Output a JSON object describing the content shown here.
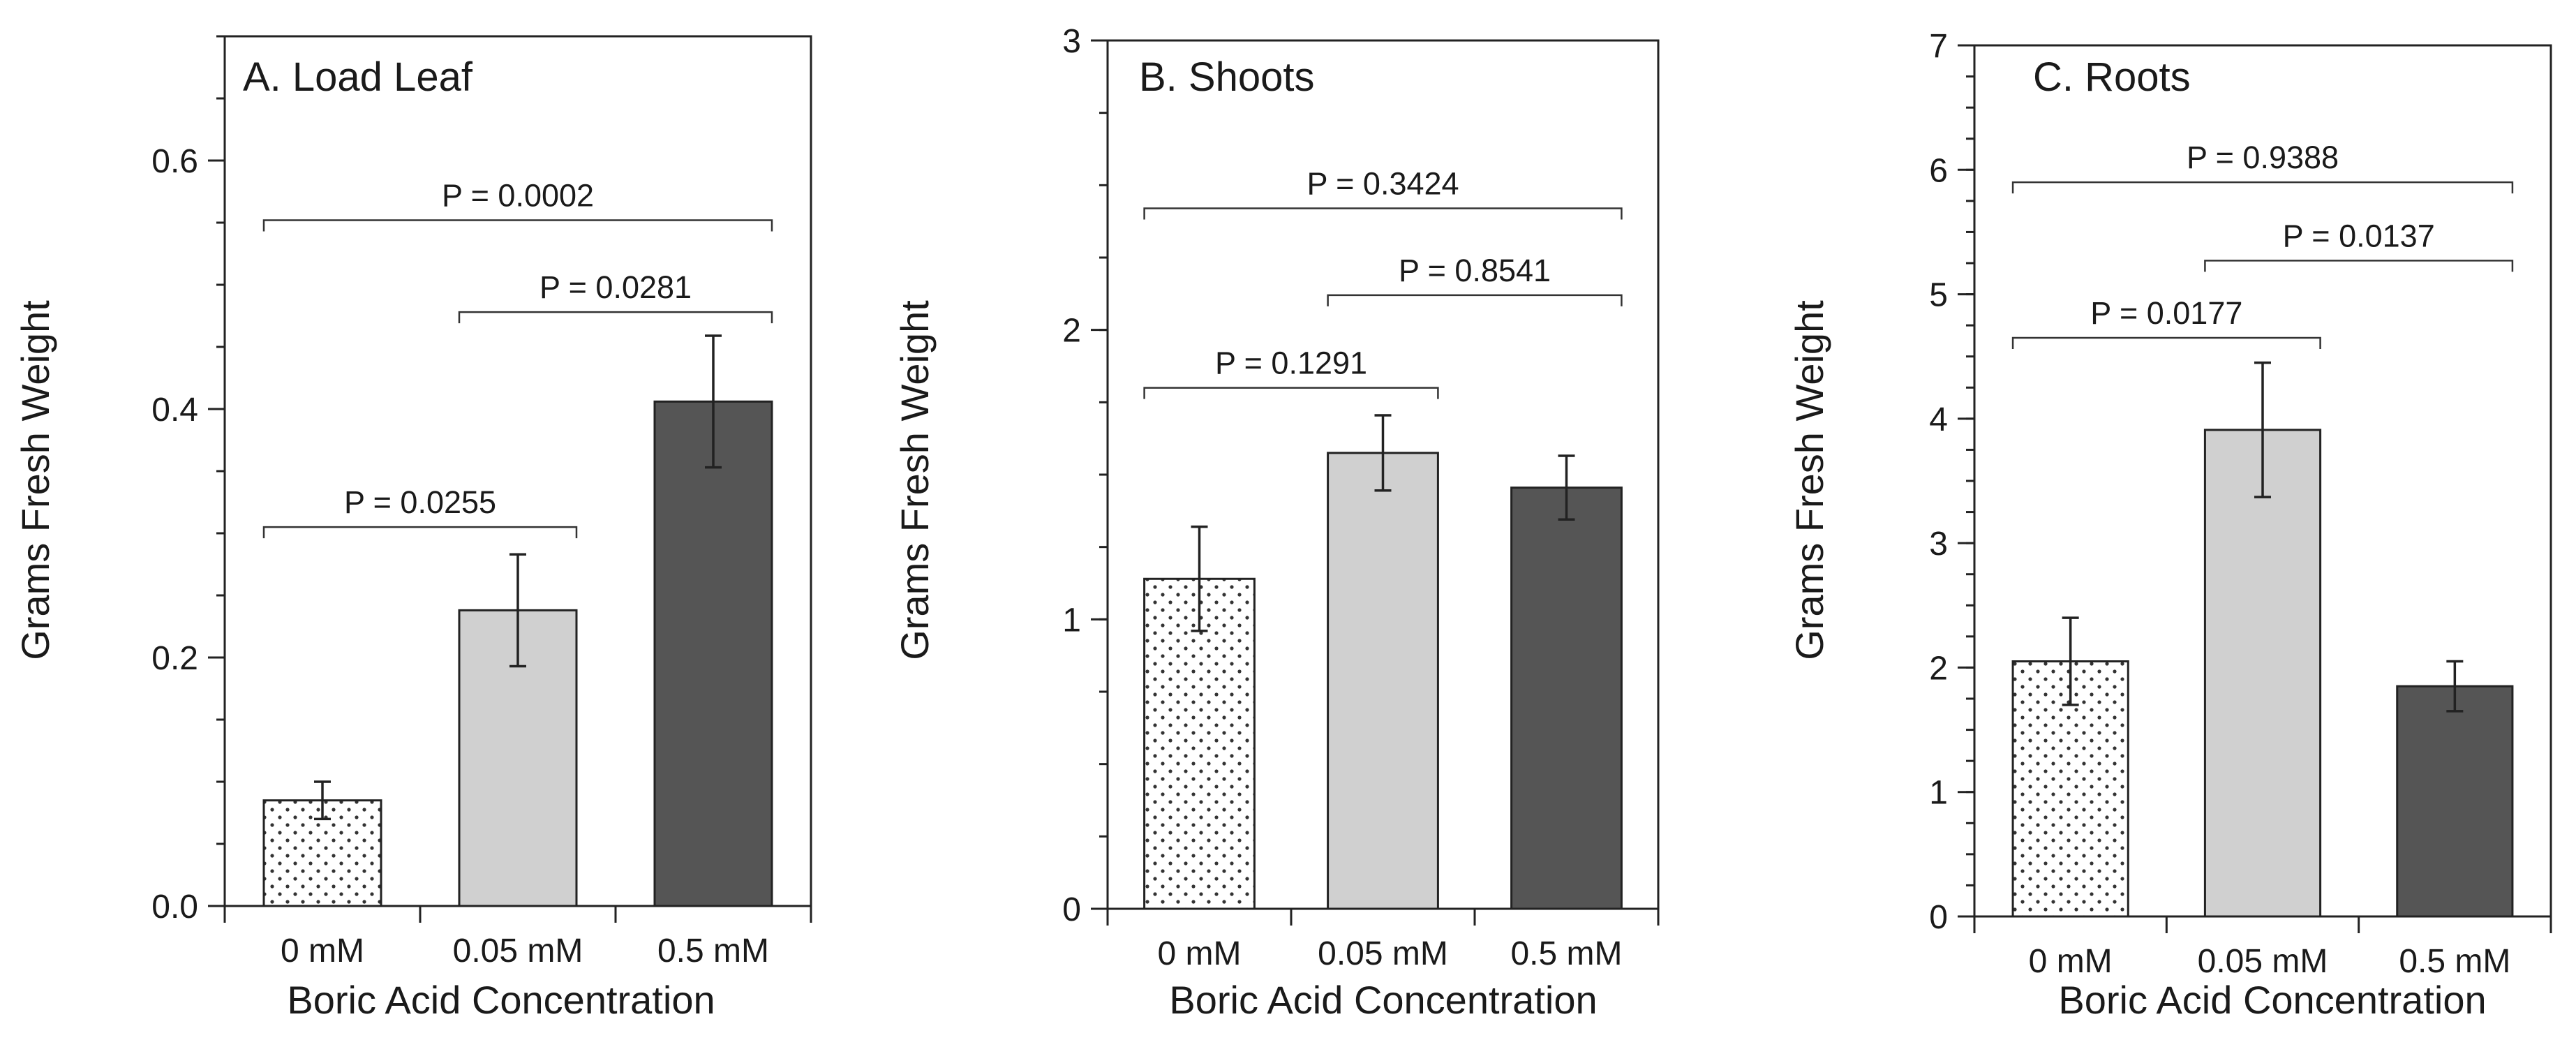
{
  "chart_data": [
    {
      "type": "bar",
      "title": "A.  Load Leaf",
      "xlabel": "Boric Acid Concentration",
      "ylabel": "Grams Fresh Weight",
      "categories": [
        "0 mM",
        "0.05 mM",
        "0.5 mM"
      ],
      "values": [
        0.085,
        0.238,
        0.406
      ],
      "errors": [
        0.015,
        0.045,
        0.053
      ],
      "bar_styles": [
        "dotted",
        "light",
        "dark"
      ],
      "ylim": [
        0,
        0.7
      ],
      "yticks": [
        0.0,
        0.2,
        0.4,
        0.6
      ],
      "ytick_labels": [
        "0.0",
        "0.2",
        "0.4",
        "0.6"
      ],
      "minor_step": 0.05,
      "comparisons": [
        {
          "from": 0,
          "to": 2,
          "label": "P = 0.0002",
          "y": 0.552
        },
        {
          "from": 1,
          "to": 2,
          "label": "P = 0.0281",
          "y": 0.478
        },
        {
          "from": 0,
          "to": 1,
          "label": "P = 0.0255",
          "y": 0.305
        }
      ]
    },
    {
      "type": "bar",
      "title": "B.  Shoots",
      "xlabel": "Boric Acid Concentration",
      "ylabel": "Grams Fresh Weight",
      "categories": [
        "0 mM",
        "0.05 mM",
        "0.5 mM"
      ],
      "values": [
        1.14,
        1.575,
        1.455
      ],
      "errors": [
        0.18,
        0.13,
        0.11
      ],
      "bar_styles": [
        "dotted",
        "light",
        "dark"
      ],
      "ylim": [
        0,
        3
      ],
      "yticks": [
        0,
        1,
        2,
        3
      ],
      "ytick_labels": [
        "0",
        "1",
        "2",
        "3"
      ],
      "minor_step": 0.25,
      "comparisons": [
        {
          "from": 0,
          "to": 2,
          "label": "P = 0.3424",
          "y": 2.42
        },
        {
          "from": 1,
          "to": 2,
          "label": "P = 0.8541",
          "y": 2.12
        },
        {
          "from": 0,
          "to": 1,
          "label": "P = 0.1291",
          "y": 1.8
        }
      ]
    },
    {
      "type": "bar",
      "title": "C.  Roots",
      "xlabel": "Boric Acid Concentration",
      "ylabel": "Grams Fresh Weight",
      "categories": [
        "0 mM",
        "0.05 mM",
        "0.5 mM"
      ],
      "values": [
        2.05,
        3.91,
        1.85
      ],
      "errors": [
        0.35,
        0.54,
        0.2
      ],
      "bar_styles": [
        "dotted",
        "light",
        "dark"
      ],
      "ylim": [
        0,
        7
      ],
      "yticks": [
        0,
        1,
        2,
        3,
        4,
        5,
        6,
        7
      ],
      "ytick_labels": [
        "0",
        "1",
        "2",
        "3",
        "4",
        "5",
        "6",
        "7"
      ],
      "minor_step": 0.25,
      "comparisons": [
        {
          "from": 0,
          "to": 2,
          "label": "P = 0.9388",
          "y": 5.9
        },
        {
          "from": 1,
          "to": 2,
          "label": "P = 0.0137",
          "y": 5.27
        },
        {
          "from": 0,
          "to": 1,
          "label": "P = 0.0177",
          "y": 4.65
        }
      ]
    }
  ],
  "colors": {
    "dotted_fill": "#ffffff",
    "dots": "#333333",
    "light_fill": "#d0d0d0",
    "dark_fill": "#555555",
    "axis": "#222222"
  }
}
